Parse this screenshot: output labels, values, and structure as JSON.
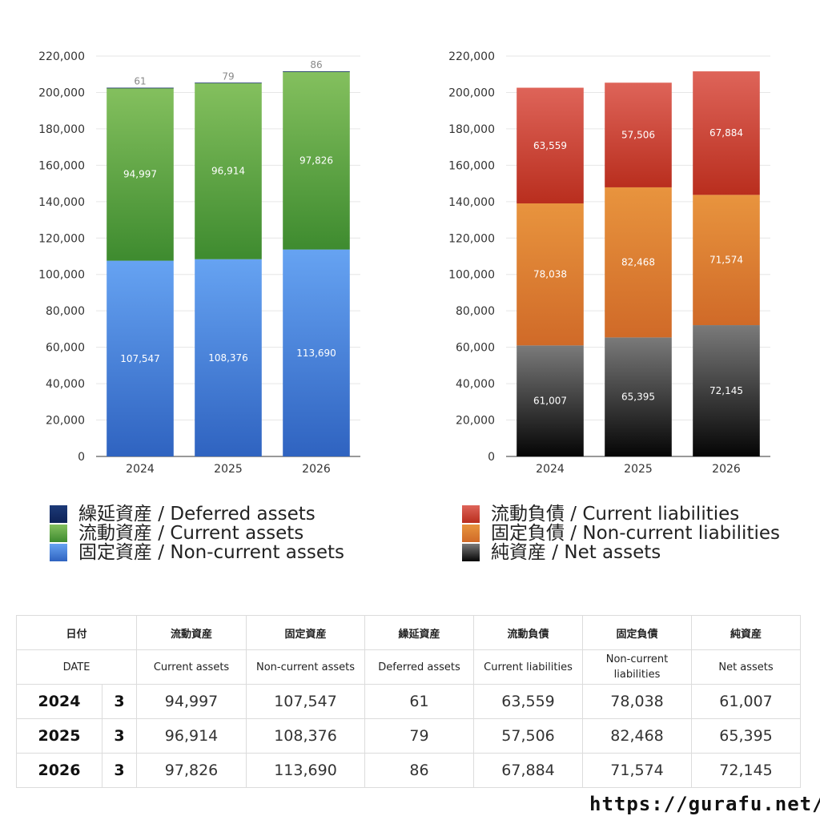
{
  "chart_data": [
    {
      "type": "bar",
      "stacked": true,
      "categories": [
        "2024",
        "2025",
        "2026"
      ],
      "ylim": [
        0,
        220000
      ],
      "yticks": [
        "0",
        "20,000",
        "40,000",
        "60,000",
        "80,000",
        "100,000",
        "120,000",
        "140,000",
        "160,000",
        "180,000",
        "200,000",
        "220,000"
      ],
      "grid": true,
      "series": [
        {
          "name": "固定資産 / Non-current assets",
          "values": [
            107547,
            108376,
            113690
          ],
          "labels": [
            "107,547",
            "108,376",
            "113,690"
          ],
          "color_top": "#66a3f2",
          "color_bottom": "#2f63c0",
          "label_color": "#ffffff"
        },
        {
          "name": "流動資産 / Current assets",
          "values": [
            94997,
            96914,
            97826
          ],
          "labels": [
            "94,997",
            "96,914",
            "97,826"
          ],
          "color_top": "#84c05e",
          "color_bottom": "#3e8b2f",
          "label_color": "#ffffff"
        },
        {
          "name": "繰延資産 / Deferred assets",
          "values": [
            61,
            79,
            86
          ],
          "labels": [
            "61",
            "79",
            "86"
          ],
          "color_top": "#1d3a78",
          "color_bottom": "#0e2257",
          "label_color": "#888888"
        }
      ],
      "legend_order": [
        2,
        1,
        0
      ]
    },
    {
      "type": "bar",
      "stacked": true,
      "categories": [
        "2024",
        "2025",
        "2026"
      ],
      "ylim": [
        0,
        220000
      ],
      "yticks": [
        "0",
        "20,000",
        "40,000",
        "60,000",
        "80,000",
        "100,000",
        "120,000",
        "140,000",
        "160,000",
        "180,000",
        "200,000",
        "220,000"
      ],
      "grid": true,
      "series": [
        {
          "name": "純資産 / Net assets",
          "values": [
            61007,
            65395,
            72145
          ],
          "labels": [
            "61,007",
            "65,395",
            "72,145"
          ],
          "color_top": "#7a7a7a",
          "color_bottom": "#050505",
          "label_color": "#ffffff"
        },
        {
          "name": "固定負債 / Non-current liabilities",
          "values": [
            78038,
            82468,
            71574
          ],
          "labels": [
            "78,038",
            "82,468",
            "71,574"
          ],
          "color_top": "#e8943e",
          "color_bottom": "#d06a28",
          "label_color": "#ffffff"
        },
        {
          "name": "流動負債 / Current liabilities",
          "values": [
            63559,
            57506,
            67884
          ],
          "labels": [
            "63,559",
            "57,506",
            "67,884"
          ],
          "color_top": "#de6459",
          "color_bottom": "#b92e1e",
          "label_color": "#ffffff"
        }
      ],
      "legend_order": [
        2,
        1,
        0
      ]
    }
  ],
  "table": {
    "header_jp": [
      "日付",
      "流動資産",
      "固定資産",
      "繰延資産",
      "流動負債",
      "固定負債",
      "純資産"
    ],
    "header_en": [
      "DATE",
      "Current assets",
      "Non-current assets",
      "Deferred assets",
      "Current liabilities",
      "Non-current liabilities",
      "Net assets"
    ],
    "rows": [
      {
        "year": "2024",
        "month": "3",
        "cells": [
          "94,997",
          "107,547",
          "61",
          "63,559",
          "78,038",
          "61,007"
        ]
      },
      {
        "year": "2025",
        "month": "3",
        "cells": [
          "96,914",
          "108,376",
          "79",
          "57,506",
          "82,468",
          "65,395"
        ]
      },
      {
        "year": "2026",
        "month": "3",
        "cells": [
          "97,826",
          "113,690",
          "86",
          "67,884",
          "71,574",
          "72,145"
        ]
      }
    ]
  },
  "footer": {
    "url": "https://gurafu.net/"
  }
}
